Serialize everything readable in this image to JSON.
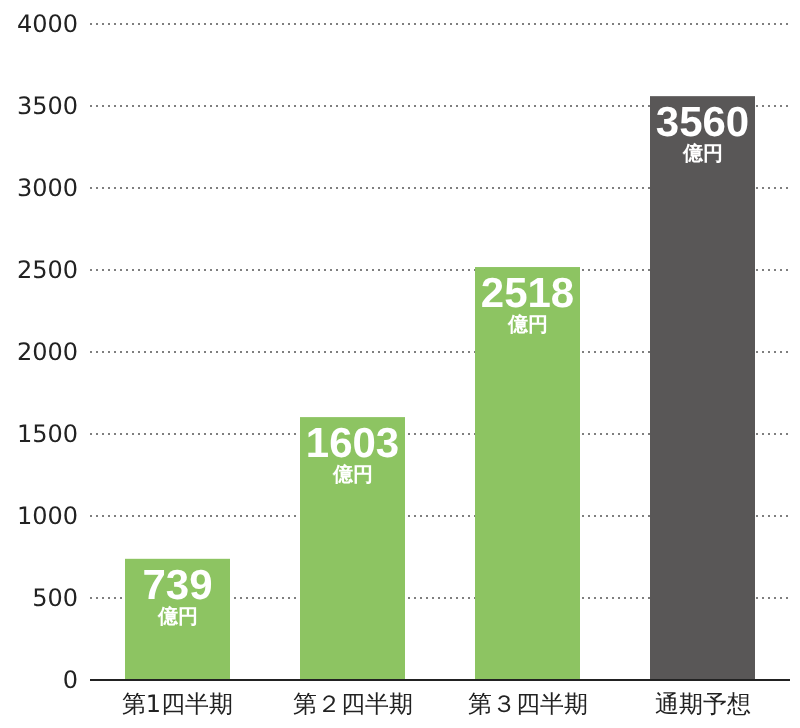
{
  "chart_data": {
    "type": "bar",
    "categories": [
      "第1四半期",
      "第２四半期",
      "第３四半期",
      "通期予想"
    ],
    "values": [
      739,
      1603,
      2518,
      3560
    ],
    "colors": [
      "#8dc462",
      "#8dc462",
      "#8dc462",
      "#595757"
    ],
    "value_labels": [
      "739\n億円",
      "1603\n億円",
      "2518\n億円",
      "3560\n億円"
    ],
    "ylim": [
      0,
      4000
    ],
    "yticks": [
      0,
      500,
      1000,
      1500,
      2000,
      2500,
      3000,
      3500,
      4000
    ],
    "grid": "y"
  }
}
